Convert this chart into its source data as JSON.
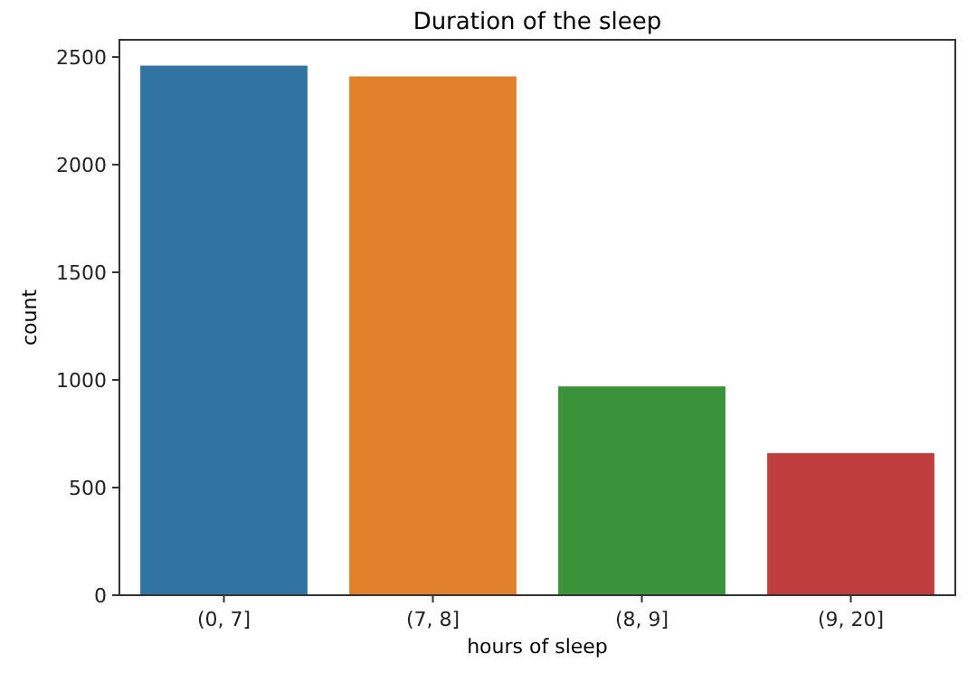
{
  "chart_data": {
    "type": "bar",
    "title": "Duration of the sleep",
    "xlabel": "hours of sleep",
    "ylabel": "count",
    "categories": [
      "(0, 7]",
      "(7, 8]",
      "(8, 9]",
      "(9, 20]"
    ],
    "values": [
      2460,
      2410,
      970,
      660
    ],
    "colors": [
      "#3274a1",
      "#e1812c",
      "#3a923a",
      "#c03d3e"
    ],
    "ylim": [
      0,
      2580
    ],
    "yticks": [
      0,
      500,
      1000,
      1500,
      2000,
      2500
    ],
    "grid": false
  }
}
